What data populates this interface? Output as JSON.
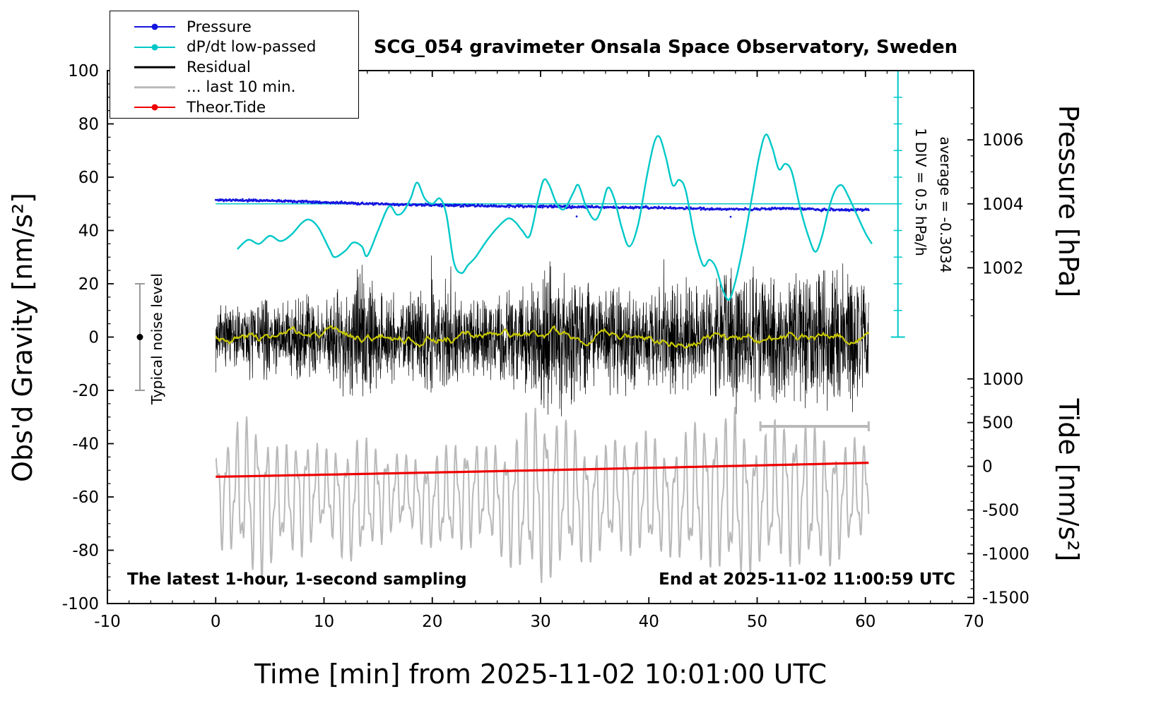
{
  "page": {
    "title": "SCG_054 gravimeter Onsala Space Observatory, Sweden"
  },
  "footers": {
    "left": "The latest 1-hour, 1-second sampling",
    "right": "End at 2025-11-02 11:00:59 UTC"
  },
  "annotations": {
    "div_scale": "1 DIV = 0.5 hPa/h",
    "average": "average = -0.3034",
    "noise_label": "Typical noise level"
  },
  "axes": {
    "x": {
      "label": "Time [min] from 2025-11-02 10:01:00 UTC",
      "min": -10,
      "max": 70,
      "major_step": 10,
      "minor_step": 2,
      "tick_labels": [
        "-10",
        "0",
        "10",
        "20",
        "30",
        "40",
        "50",
        "60",
        "70"
      ]
    },
    "y_left": {
      "label": "Obs'd Gravity [nm/s²]",
      "min": -100,
      "max": 100,
      "major_step": 20,
      "minor_step": 5,
      "tick_labels": [
        "-100",
        "-80",
        "-60",
        "-40",
        "-20",
        "0",
        "20",
        "40",
        "60",
        "80",
        "100"
      ]
    },
    "y_right_pressure": {
      "label": "Pressure [hPa]",
      "tick_labels": [
        "1006",
        "1004",
        "1002"
      ],
      "ref_hpa": 1004,
      "g_at_ref": 50,
      "g_per_hpa": 12,
      "minor_step_hpa": 0.5,
      "minor_range": [
        1000.5,
        1007
      ]
    },
    "y_right_tide": {
      "label": "Tide [nm/s²]",
      "tick_labels": [
        "1000",
        "500",
        "0",
        "-500",
        "-1000",
        "-1500"
      ],
      "g_at_zero": -48.5,
      "g_per_unit": 0.0328,
      "major_step": 500,
      "minor_step": 100,
      "range": [
        -1500,
        1000
      ]
    }
  },
  "legend": {
    "items": [
      {
        "label": "Pressure",
        "color": "#1515e0",
        "marker": "line-dot",
        "lw": 2
      },
      {
        "label": "dP/dt low-passed",
        "color": "#00c8c8",
        "marker": "line-dot",
        "lw": 2
      },
      {
        "label": "Residual",
        "color": "#000000",
        "marker": "line",
        "lw": 2.5
      },
      {
        "label": "... last 10 min.",
        "color": "#b9b9b9",
        "marker": "line",
        "lw": 3.5
      },
      {
        "label": "Theor.Tide",
        "color": "#ee0000",
        "marker": "line-dot",
        "lw": 2
      }
    ]
  },
  "chart_data": {
    "type": "line",
    "title": "SCG_054 gravimeter Onsala Space Observatory, Sweden",
    "xlabel": "Time [min] from 2025-11-02 10:01:00 UTC",
    "ylabel": "Obs'd Gravity [nm/s²]",
    "ylabel_right_top": "Pressure [hPa]",
    "ylabel_right_bottom": "Tide [nm/s²]",
    "xlim": [
      -10,
      70
    ],
    "ylim": [
      -100,
      100
    ],
    "x_span_min": [
      0,
      60.3
    ],
    "grid": false,
    "legend_position": "top-left",
    "reference_lines": {
      "dpdt_zero_g": 50,
      "dpdt_axis_x_min": 63,
      "dpdt_div_g": 10
    },
    "scalebar_10min": {
      "t0": 50.3,
      "t1": 60.3,
      "g": -33.5
    },
    "noise_bar": {
      "t": -7,
      "g_top": 20,
      "g_bottom": -20,
      "dot_g": 0
    },
    "series": [
      {
        "key": "pressure",
        "name": "Pressure",
        "color": "#1515e0",
        "style": "dots",
        "n_points": 900,
        "seed": 11,
        "sigma_hpa": 0.018,
        "outlier_p": 0.006,
        "outlier_max_hpa": 0.3,
        "trend_hpa": [
          [
            0,
            1004.12
          ],
          [
            6,
            1004.1
          ],
          [
            10,
            1004.05
          ],
          [
            14,
            1004.0
          ],
          [
            18,
            1003.97
          ],
          [
            22,
            1003.95
          ],
          [
            26,
            1003.93
          ],
          [
            30,
            1003.92
          ],
          [
            34,
            1003.9
          ],
          [
            38,
            1003.89
          ],
          [
            42,
            1003.87
          ],
          [
            46,
            1003.84
          ],
          [
            50,
            1003.83
          ],
          [
            53,
            1003.86
          ],
          [
            56,
            1003.82
          ],
          [
            58,
            1003.8
          ],
          [
            60.3,
            1003.83
          ]
        ]
      },
      {
        "key": "dpdt",
        "name": "dP/dt low-passed",
        "color": "#00c8c8",
        "style": "smooth",
        "width": 2.4,
        "points_t_g": [
          [
            2,
            33
          ],
          [
            3,
            36.5
          ],
          [
            4,
            35
          ],
          [
            5,
            38
          ],
          [
            6,
            36
          ],
          [
            7,
            38.5
          ],
          [
            8,
            43
          ],
          [
            8.7,
            44
          ],
          [
            9.5,
            41
          ],
          [
            10.5,
            33
          ],
          [
            11,
            30
          ],
          [
            12,
            32.5
          ],
          [
            12.7,
            35.5
          ],
          [
            13.5,
            34
          ],
          [
            14,
            30.5
          ],
          [
            15,
            40
          ],
          [
            16,
            49
          ],
          [
            16.7,
            46
          ],
          [
            17.3,
            47
          ],
          [
            18,
            52
          ],
          [
            18.6,
            58
          ],
          [
            19.3,
            52
          ],
          [
            20,
            50
          ],
          [
            20.7,
            52
          ],
          [
            21.3,
            46
          ],
          [
            22,
            28
          ],
          [
            22.7,
            24
          ],
          [
            23.3,
            27
          ],
          [
            24,
            30
          ],
          [
            25,
            36
          ],
          [
            26,
            41
          ],
          [
            27,
            44.5
          ],
          [
            27.7,
            43
          ],
          [
            28.3,
            40
          ],
          [
            29,
            38
          ],
          [
            29.8,
            52
          ],
          [
            30.3,
            59
          ],
          [
            30.8,
            57
          ],
          [
            31.5,
            50
          ],
          [
            32.2,
            48
          ],
          [
            33,
            54
          ],
          [
            33.5,
            57
          ],
          [
            34.2,
            49
          ],
          [
            35,
            44
          ],
          [
            35.6,
            48
          ],
          [
            36.2,
            56
          ],
          [
            36.8,
            52
          ],
          [
            37.5,
            41
          ],
          [
            38.2,
            34
          ],
          [
            39,
            42
          ],
          [
            39.8,
            60
          ],
          [
            40.5,
            73
          ],
          [
            41,
            75
          ],
          [
            41.6,
            67
          ],
          [
            42.2,
            57
          ],
          [
            42.8,
            59
          ],
          [
            43.4,
            55
          ],
          [
            44.2,
            38
          ],
          [
            45,
            27
          ],
          [
            45.6,
            29
          ],
          [
            46.2,
            26
          ],
          [
            46.8,
            18
          ],
          [
            47.4,
            14
          ],
          [
            48,
            21
          ],
          [
            48.7,
            34
          ],
          [
            49.5,
            52
          ],
          [
            50.2,
            68
          ],
          [
            50.8,
            76
          ],
          [
            51.4,
            71
          ],
          [
            52,
            63
          ],
          [
            52.6,
            65
          ],
          [
            53.2,
            62
          ],
          [
            54,
            48
          ],
          [
            54.8,
            37
          ],
          [
            55.4,
            32
          ],
          [
            56,
            38
          ],
          [
            56.6,
            48
          ],
          [
            57.2,
            55
          ],
          [
            57.8,
            57
          ],
          [
            58.4,
            53
          ],
          [
            59.2,
            46
          ],
          [
            60,
            39
          ],
          [
            60.6,
            35
          ]
        ]
      },
      {
        "key": "residual",
        "name": "Residual",
        "color": "#000000",
        "style": "noise",
        "width": 0.7,
        "n_points": 3000,
        "seed": 7,
        "center_g": 0,
        "envelope_g": [
          [
            0,
            13
          ],
          [
            2,
            12
          ],
          [
            4,
            17
          ],
          [
            6,
            12
          ],
          [
            8,
            19
          ],
          [
            10,
            14
          ],
          [
            12,
            22
          ],
          [
            13.5,
            30
          ],
          [
            15,
            17
          ],
          [
            17,
            18
          ],
          [
            19,
            17
          ],
          [
            20.5,
            25
          ],
          [
            22,
            19
          ],
          [
            24,
            15
          ],
          [
            26,
            17
          ],
          [
            28,
            21
          ],
          [
            30,
            27
          ],
          [
            31,
            29
          ],
          [
            33,
            26
          ],
          [
            35,
            19
          ],
          [
            36,
            23
          ],
          [
            38,
            21
          ],
          [
            39,
            17
          ],
          [
            41,
            20
          ],
          [
            43,
            23
          ],
          [
            45,
            17
          ],
          [
            47,
            26
          ],
          [
            48,
            28
          ],
          [
            50,
            25
          ],
          [
            51,
            28
          ],
          [
            53,
            21
          ],
          [
            55,
            29
          ],
          [
            57,
            27
          ],
          [
            58,
            30
          ],
          [
            59,
            24
          ],
          [
            60.3,
            20
          ]
        ]
      },
      {
        "key": "residual_lp",
        "name": "Residual low-passed",
        "color": "#c8c800",
        "style": "walk",
        "width": 2.2,
        "n_points": 520,
        "seed": 3,
        "step": 2.0,
        "decay": 0.9,
        "clamp": 4
      },
      {
        "key": "last10",
        "name": "... last 10 min.",
        "color": "#b9b9b9",
        "style": "osc",
        "width": 2,
        "n_points": 1500,
        "seed": 5,
        "center_tide": -350,
        "slow_amp": 60,
        "slow_period": 7.3,
        "p1": 0.92,
        "p2": 0.41,
        "w1": 0.85,
        "w2": 0.35,
        "ph1": 0.7,
        "ph2": 2.1,
        "amp_tide": [
          [
            0,
            480
          ],
          [
            3,
            760
          ],
          [
            4,
            820
          ],
          [
            6,
            520
          ],
          [
            8,
            600
          ],
          [
            10,
            420
          ],
          [
            13,
            650
          ],
          [
            16,
            420
          ],
          [
            18,
            380
          ],
          [
            21,
            520
          ],
          [
            23,
            560
          ],
          [
            25,
            470
          ],
          [
            27,
            620
          ],
          [
            29,
            870
          ],
          [
            30,
            900
          ],
          [
            32,
            760
          ],
          [
            34,
            620
          ],
          [
            36,
            520
          ],
          [
            38,
            620
          ],
          [
            40,
            620
          ],
          [
            42,
            520
          ],
          [
            44,
            720
          ],
          [
            46,
            720
          ],
          [
            48,
            870
          ],
          [
            50,
            620
          ],
          [
            52,
            720
          ],
          [
            54,
            720
          ],
          [
            56,
            700
          ],
          [
            58,
            560
          ],
          [
            60.3,
            500
          ]
        ]
      },
      {
        "key": "tide",
        "name": "Theor.Tide",
        "color": "#ee0000",
        "style": "quad",
        "width": 3.2,
        "points_tide": [
          [
            0,
            -120
          ],
          [
            30,
            -45
          ],
          [
            60.3,
            40
          ]
        ]
      }
    ]
  }
}
